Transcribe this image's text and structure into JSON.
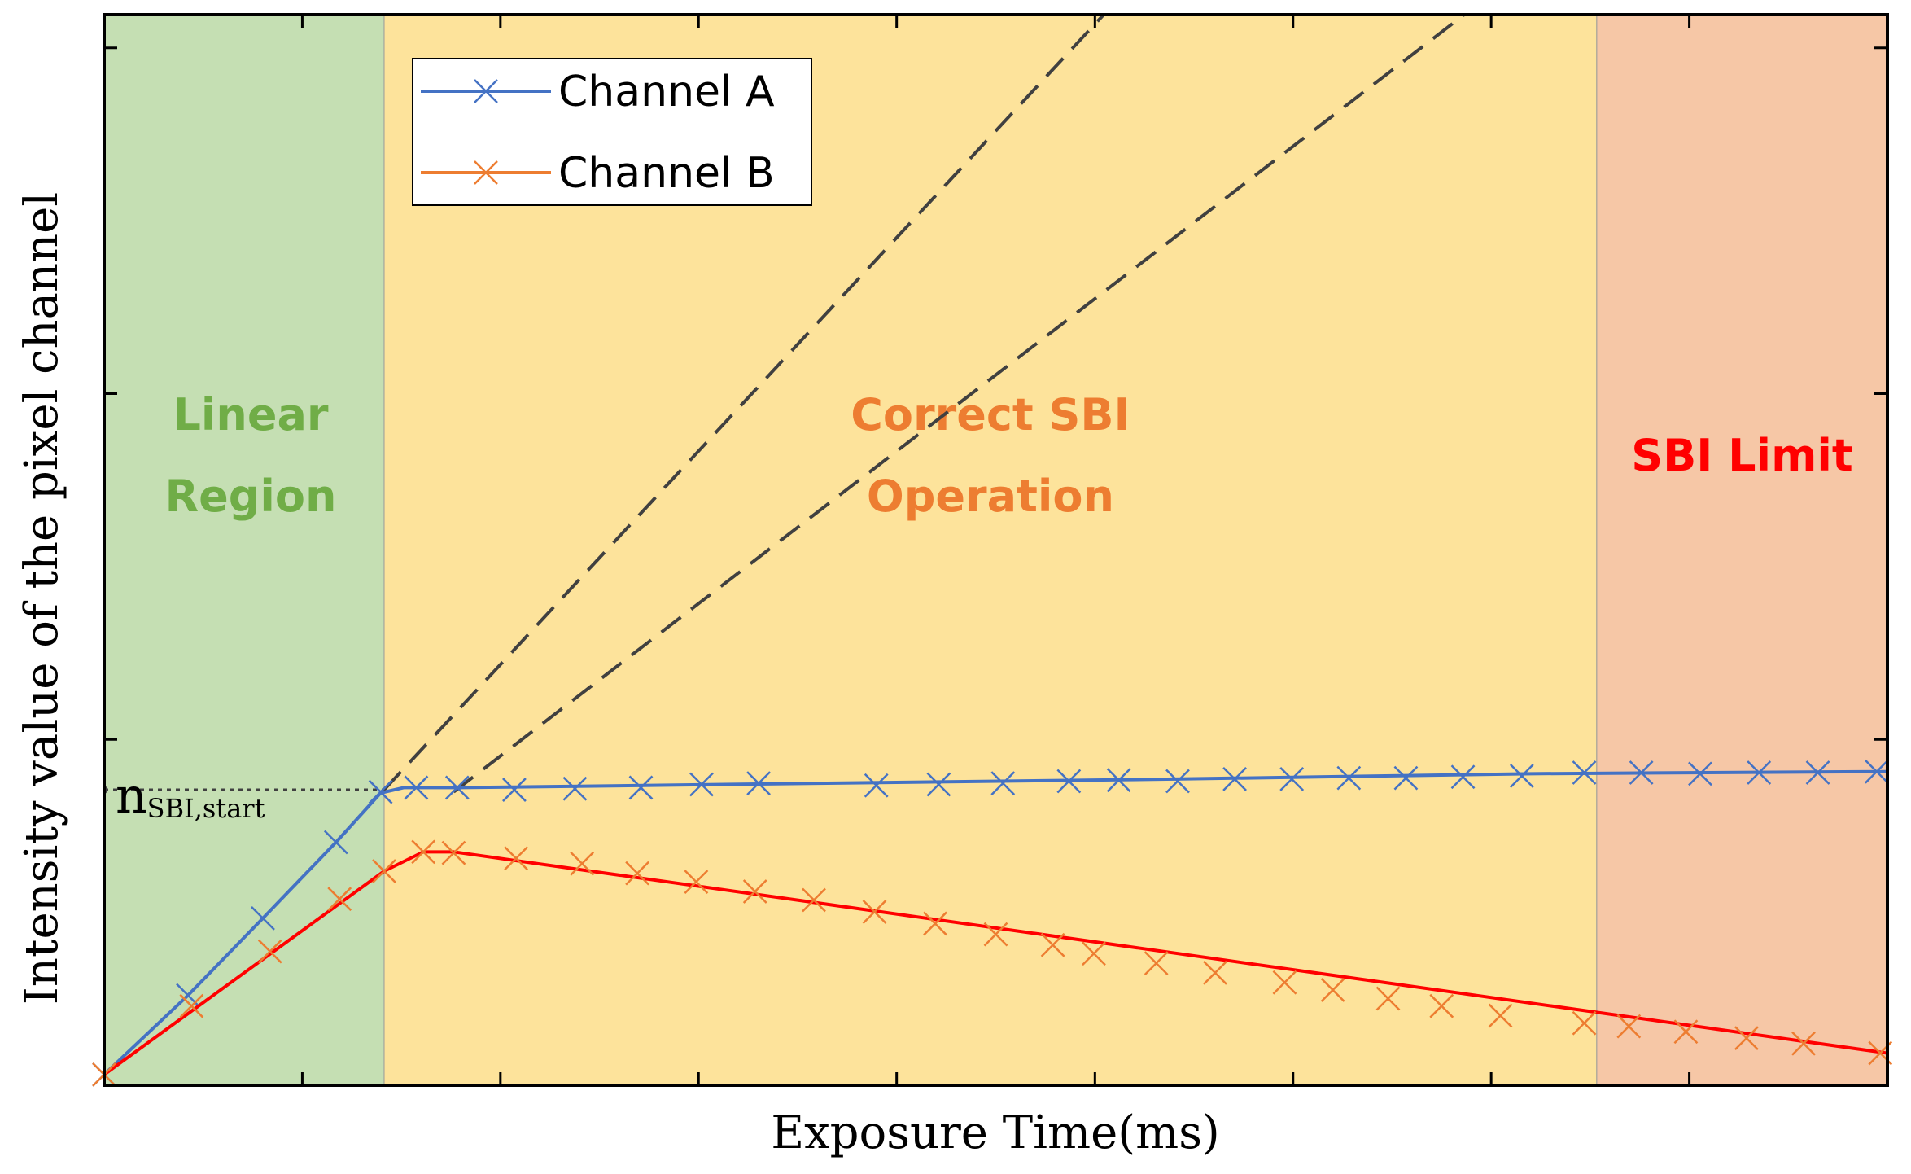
{
  "chart_data": {
    "type": "line",
    "xlabel": "Exposure Time(ms)",
    "ylabel": "Intensity value of the pixel channel",
    "xlim": [
      0,
      100
    ],
    "ylim": [
      0,
      100
    ],
    "x_ticks": [
      0,
      11.11,
      22.22,
      33.33,
      44.44,
      55.56,
      66.67,
      77.78,
      88.89,
      100
    ],
    "y_ticks": [
      0,
      32.3,
      64.6,
      96.9
    ],
    "grid": false,
    "legend_position": "top-left",
    "regions": [
      {
        "name": "linear",
        "label_lines": [
          "Linear",
          "Region"
        ],
        "x_start": 0,
        "x_end": 15.7,
        "fill": "#c5dfb3",
        "text_color": "#70ad47"
      },
      {
        "name": "correct-sbi",
        "label_lines": [
          "Correct SBI",
          "Operation"
        ],
        "x_start": 15.7,
        "x_end": 83.7,
        "fill": "#fde39b",
        "text_color": "#ed7d31"
      },
      {
        "name": "sbi-limit",
        "label_lines": [
          "SBI Limit"
        ],
        "x_start": 83.7,
        "x_end": 100,
        "fill": "#f6c7a6",
        "text_color": "#ff0000"
      }
    ],
    "series": [
      {
        "name": "Channel A",
        "line_color": "#4472c4",
        "marker_color": "#4472c4",
        "x": [
          0,
          4.7,
          8.9,
          13.0,
          15.5,
          17.5,
          19.8,
          23.0,
          26.4,
          30.1,
          33.5,
          36.7,
          43.3,
          46.8,
          50.4,
          54.1,
          56.9,
          60.2,
          63.4,
          66.6,
          69.8,
          73.0,
          76.2,
          79.5,
          83.0,
          86.2,
          89.5,
          92.8,
          96.1,
          99.4
        ],
        "values": [
          1.0,
          8.4,
          15.6,
          22.7,
          27.4,
          27.8,
          27.8,
          27.6,
          27.7,
          27.8,
          28.1,
          28.2,
          28.0,
          28.1,
          28.2,
          28.4,
          28.5,
          28.4,
          28.6,
          28.6,
          28.7,
          28.7,
          28.8,
          28.9,
          29.2,
          29.2,
          29.1,
          29.2,
          29.2,
          29.3
        ],
        "line_x": [
          0,
          4.7,
          8.9,
          13.0,
          15.5,
          16.8,
          20.0,
          40.0,
          60.0,
          80.0,
          100
        ],
        "line_values": [
          1.0,
          8.4,
          15.6,
          22.7,
          27.3,
          27.8,
          27.8,
          28.2,
          28.6,
          29.1,
          29.3
        ]
      },
      {
        "name": "Channel B",
        "line_color": "#ff0000",
        "marker_color": "#ed7d31",
        "x": [
          0,
          4.9,
          9.3,
          13.2,
          15.7,
          17.9,
          19.6,
          23.1,
          26.8,
          29.9,
          33.2,
          36.5,
          39.8,
          43.2,
          46.6,
          50.0,
          53.2,
          55.5,
          59.0,
          62.3,
          66.2,
          68.9,
          72.0,
          75.0,
          78.3,
          83.0,
          85.5,
          88.7,
          92.1,
          95.3,
          99.6
        ],
        "values": [
          1.0,
          7.4,
          12.5,
          17.4,
          20.0,
          21.8,
          21.7,
          21.2,
          20.7,
          19.8,
          19.0,
          18.1,
          17.3,
          16.2,
          15.1,
          14.1,
          13.1,
          12.3,
          11.4,
          10.5,
          9.6,
          8.9,
          8.1,
          7.4,
          6.5,
          5.8,
          5.5,
          5.0,
          4.4,
          3.9,
          3.0
        ],
        "line_x": [
          0,
          15.7,
          17.9,
          19.6,
          100
        ],
        "line_values": [
          1.0,
          20.0,
          21.8,
          21.8,
          3.0
        ]
      }
    ],
    "reference_lines": [
      {
        "name": "dashed-extrapolation-steep",
        "x": [
          15.7,
          58.0
        ],
        "values": [
          27.6,
          103.5
        ],
        "color": "#404040",
        "style": "dashed"
      },
      {
        "name": "dashed-extrapolation-shallow",
        "x": [
          19.6,
          79.0
        ],
        "values": [
          27.4,
          103.5
        ],
        "color": "#404040",
        "style": "dashed"
      },
      {
        "name": "n-sbi-start-level",
        "x": [
          0,
          15.9
        ],
        "values": [
          27.6,
          27.6
        ],
        "color": "#404040",
        "style": "dotted"
      }
    ],
    "annotations": [
      {
        "name": "n-sbi-start",
        "main": "n",
        "subscript": "SBI,start",
        "color": "#000000"
      }
    ]
  }
}
